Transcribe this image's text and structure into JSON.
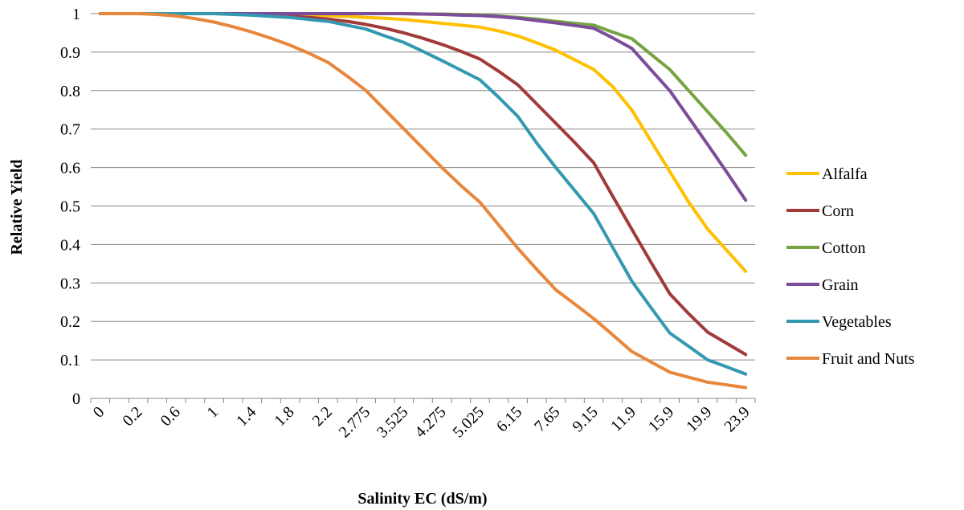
{
  "chart_data": {
    "type": "line",
    "title": "",
    "xlabel": "Salinity EC (dS/m)",
    "ylabel": "Relative Yield",
    "ylim": [
      0,
      1
    ],
    "y_ticks": [
      "0",
      "0.1",
      "0.2",
      "0.3",
      "0.4",
      "0.5",
      "0.6",
      "0.7",
      "0.8",
      "0.9",
      "1"
    ],
    "grid": "horizontal",
    "legend_position": "right",
    "categories": [
      "0",
      "",
      "0.2",
      "",
      "0.6",
      "",
      "1",
      "",
      "1.4",
      "",
      "1.8",
      "",
      "2.2",
      "",
      "2.775",
      "",
      "3.525",
      "",
      "4.275",
      "",
      "5.025",
      "",
      "6.15",
      "",
      "7.65",
      "",
      "9.15",
      "",
      "11.9",
      "",
      "15.9",
      "",
      "19.9",
      "",
      "23.9"
    ],
    "series": [
      {
        "name": "Alfalfa",
        "color": "#FFC000",
        "values": [
          1,
          1,
          1,
          1,
          1,
          1,
          1,
          1,
          0.999,
          0.999,
          0.998,
          0.997,
          0.995,
          0.993,
          0.99,
          0.988,
          0.985,
          0.98,
          0.975,
          0.97,
          0.965,
          0.955,
          0.942,
          0.924,
          0.905,
          0.88,
          0.855,
          0.81,
          0.75,
          0.67,
          0.59,
          0.51,
          0.44,
          0.385,
          0.33
        ]
      },
      {
        "name": "Corn",
        "color": "#A33A3A",
        "values": [
          1,
          1,
          1,
          1,
          1,
          1,
          1,
          0.999,
          0.998,
          0.996,
          0.993,
          0.99,
          0.986,
          0.98,
          0.972,
          0.962,
          0.95,
          0.936,
          0.92,
          0.902,
          0.882,
          0.85,
          0.815,
          0.765,
          0.715,
          0.665,
          0.612,
          0.525,
          0.44,
          0.355,
          0.272,
          0.22,
          0.172,
          0.143,
          0.114
        ]
      },
      {
        "name": "Cotton",
        "color": "#77A342",
        "values": [
          1,
          1,
          1,
          1,
          1,
          1,
          1,
          1,
          1,
          1,
          1,
          1,
          1,
          1,
          1,
          1,
          1,
          0.999,
          0.999,
          0.998,
          0.997,
          0.994,
          0.99,
          0.986,
          0.98,
          0.975,
          0.97,
          0.952,
          0.935,
          0.895,
          0.855,
          0.8,
          0.745,
          0.69,
          0.632
        ]
      },
      {
        "name": "Grain",
        "color": "#7B4D9A",
        "values": [
          1,
          1,
          1,
          1,
          1,
          1,
          1,
          1,
          1,
          1,
          1,
          1,
          1,
          1,
          1,
          1,
          1,
          0.999,
          0.998,
          0.996,
          0.995,
          0.992,
          0.988,
          0.982,
          0.976,
          0.969,
          0.962,
          0.937,
          0.91,
          0.855,
          0.8,
          0.73,
          0.66,
          0.588,
          0.515
        ]
      },
      {
        "name": "Vegetables",
        "color": "#3399B0",
        "values": [
          1,
          1,
          1,
          1,
          1,
          1,
          1,
          0.998,
          0.996,
          0.993,
          0.99,
          0.985,
          0.98,
          0.97,
          0.96,
          0.942,
          0.925,
          0.902,
          0.878,
          0.853,
          0.828,
          0.782,
          0.733,
          0.663,
          0.6,
          0.54,
          0.48,
          0.392,
          0.305,
          0.237,
          0.17,
          0.135,
          0.1,
          0.082,
          0.063
        ]
      },
      {
        "name": "Fruit and Nuts",
        "color": "#E8873C",
        "values": [
          1,
          1,
          1,
          0.998,
          0.994,
          0.987,
          0.978,
          0.966,
          0.952,
          0.936,
          0.918,
          0.897,
          0.873,
          0.838,
          0.8,
          0.75,
          0.7,
          0.65,
          0.6,
          0.553,
          0.51,
          0.45,
          0.39,
          0.335,
          0.282,
          0.245,
          0.207,
          0.165,
          0.122,
          0.095,
          0.068,
          0.055,
          0.042,
          0.035,
          0.028
        ]
      }
    ]
  }
}
